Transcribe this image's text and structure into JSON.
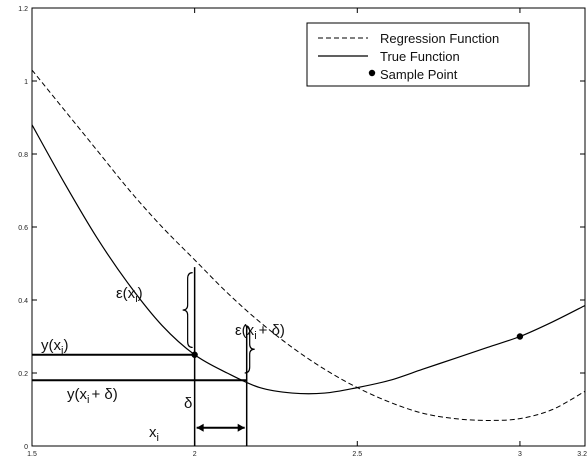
{
  "chart_data": {
    "type": "line",
    "title": "",
    "xlabel": "",
    "ylabel": "",
    "xlim": [
      1.5,
      3.2
    ],
    "ylim": [
      0,
      1.2
    ],
    "grid": false,
    "legend_position": "top-right",
    "x_ticks": [
      1.5,
      2,
      2.5,
      3,
      3.2
    ],
    "x_tick_labels": [
      "1.5",
      "2",
      "2.5",
      "3",
      "3.2"
    ],
    "y_ticks": [
      0,
      0.2,
      0.4,
      0.6,
      0.8,
      1,
      1.2
    ],
    "y_tick_labels": [
      "0",
      "0.2",
      "0.4",
      "0.6",
      "0.8",
      "1",
      "1.2"
    ],
    "series": [
      {
        "name": "Regression Function",
        "style": "dashed",
        "x": [
          1.5,
          1.6,
          1.7,
          1.8,
          1.9,
          2.0,
          2.1,
          2.2,
          2.3,
          2.4,
          2.5,
          2.6,
          2.7,
          2.8,
          2.9,
          3.0,
          3.1,
          3.2
        ],
        "y": [
          1.03,
          0.92,
          0.81,
          0.7,
          0.6,
          0.51,
          0.42,
          0.34,
          0.27,
          0.21,
          0.16,
          0.12,
          0.09,
          0.075,
          0.07,
          0.075,
          0.1,
          0.15
        ]
      },
      {
        "name": "True Function",
        "style": "solid",
        "x": [
          1.5,
          1.6,
          1.7,
          1.8,
          1.9,
          2.0,
          2.1,
          2.2,
          2.3,
          2.4,
          2.5,
          2.6,
          2.7,
          2.8,
          2.9,
          3.0,
          3.1,
          3.2
        ],
        "y": [
          0.88,
          0.72,
          0.57,
          0.44,
          0.33,
          0.25,
          0.2,
          0.16,
          0.145,
          0.145,
          0.16,
          0.18,
          0.21,
          0.24,
          0.27,
          0.3,
          0.34,
          0.385
        ]
      }
    ],
    "sample_points": {
      "name": "Sample Point",
      "x": [
        2.0,
        3.0
      ],
      "y": [
        0.25,
        0.3
      ]
    },
    "annotations": {
      "y_xi": "y(x",
      "y_xi_sub": "i",
      "y_xi_close": ")",
      "y_xi_delta": "y(x",
      "y_xi_delta_sub": "i",
      "y_xi_delta_close": "+ δ)",
      "eps_xi": "ε(x",
      "eps_xi_sub": "i",
      "eps_xi_close": ")",
      "eps_xi_delta": "ε(x",
      "eps_xi_delta_sub": "i",
      "eps_xi_delta_close": "+ δ)",
      "delta": "δ",
      "xi": "x",
      "xi_sub": "i"
    },
    "colors": {
      "lines": "#000000",
      "background": "#ffffff"
    }
  }
}
